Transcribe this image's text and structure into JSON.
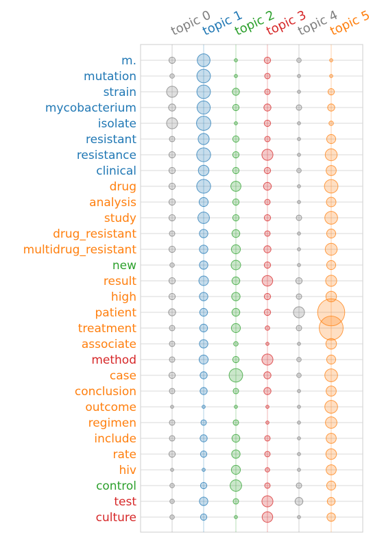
{
  "chart_data": {
    "type": "scatter",
    "title": "",
    "topics": [
      {
        "label": "topic 0",
        "color": "#7f7f7f"
      },
      {
        "label": "topic 1",
        "color": "#1f77b4"
      },
      {
        "label": "topic 2",
        "color": "#2ca02c"
      },
      {
        "label": "topic 3",
        "color": "#d62728"
      },
      {
        "label": "topic 4",
        "color": "#7f7f7f"
      },
      {
        "label": "topic 5",
        "color": "#ff7f0e"
      }
    ],
    "terms": [
      {
        "label": "m.",
        "topic": 1,
        "weights": [
          2,
          8,
          0.5,
          2,
          1,
          0.5
        ]
      },
      {
        "label": "mutation",
        "topic": 1,
        "weights": [
          1,
          9,
          0.5,
          1.5,
          0.5,
          0.5
        ]
      },
      {
        "label": "strain",
        "topic": 1,
        "weights": [
          6,
          9,
          2.5,
          1.5,
          0.5,
          2
        ]
      },
      {
        "label": "mycobacterium",
        "topic": 1,
        "weights": [
          2.5,
          8.5,
          2,
          2.5,
          1.5,
          2.5
        ]
      },
      {
        "label": "isolate",
        "topic": 1,
        "weights": [
          6,
          10,
          0.5,
          2,
          0.5,
          1
        ]
      },
      {
        "label": "resistant",
        "topic": 1,
        "weights": [
          1.5,
          6,
          2,
          1.5,
          0.5,
          4
        ]
      },
      {
        "label": "resistance",
        "topic": 1,
        "weights": [
          2,
          9.5,
          2,
          6,
          0.5,
          7
        ]
      },
      {
        "label": "clinical",
        "topic": 1,
        "weights": [
          2,
          5.5,
          2,
          2,
          1,
          5
        ]
      },
      {
        "label": "drug",
        "topic": 5,
        "weights": [
          2,
          9.5,
          5,
          3,
          0.5,
          9
        ]
      },
      {
        "label": "analysis",
        "topic": 5,
        "weights": [
          2,
          4,
          2,
          1.5,
          0.5,
          4.5
        ]
      },
      {
        "label": "study",
        "topic": 5,
        "weights": [
          2,
          6.5,
          2,
          2,
          1.5,
          8
        ]
      },
      {
        "label": "drug_resistant",
        "topic": 5,
        "weights": [
          1.5,
          3.5,
          3,
          1.5,
          0.5,
          4
        ]
      },
      {
        "label": "multidrug_resistant",
        "topic": 5,
        "weights": [
          2,
          3.5,
          4,
          2.5,
          0.5,
          7
        ]
      },
      {
        "label": "new",
        "topic": 2,
        "weights": [
          1,
          3.5,
          4.5,
          2,
          0.5,
          4
        ]
      },
      {
        "label": "result",
        "topic": 5,
        "weights": [
          2,
          4.5,
          3,
          5.5,
          2,
          6
        ]
      },
      {
        "label": "high",
        "topic": 5,
        "weights": [
          2,
          3.5,
          3.5,
          2,
          1.5,
          5.5
        ]
      },
      {
        "label": "patient",
        "topic": 5,
        "weights": [
          2.5,
          3,
          3,
          2,
          6,
          36
        ]
      },
      {
        "label": "treatment",
        "topic": 5,
        "weights": [
          1.5,
          3,
          4,
          1,
          1.5,
          28
        ]
      },
      {
        "label": "associate",
        "topic": 5,
        "weights": [
          1.5,
          3.5,
          1,
          0.5,
          0.5,
          5.5
        ]
      },
      {
        "label": "method",
        "topic": 3,
        "weights": [
          1.5,
          4,
          2,
          6,
          1,
          4
        ]
      },
      {
        "label": "case",
        "topic": 5,
        "weights": [
          2,
          2.5,
          9,
          2.5,
          1,
          8
        ]
      },
      {
        "label": "conclusion",
        "topic": 5,
        "weights": [
          1.5,
          2.5,
          1.5,
          2.5,
          0.5,
          5
        ]
      },
      {
        "label": "outcome",
        "topic": 5,
        "weights": [
          0.5,
          0.5,
          0.5,
          0.5,
          0.5,
          8
        ]
      },
      {
        "label": "regimen",
        "topic": 5,
        "weights": [
          1.5,
          1.5,
          1.5,
          0.5,
          0.5,
          6.5
        ]
      },
      {
        "label": "include",
        "topic": 5,
        "weights": [
          1.5,
          2.5,
          3,
          1.5,
          0.5,
          5
        ]
      },
      {
        "label": "rate",
        "topic": 5,
        "weights": [
          2,
          2,
          3.5,
          1.5,
          0.5,
          5.5
        ]
      },
      {
        "label": "hiv",
        "topic": 5,
        "weights": [
          0.5,
          0.5,
          4,
          1,
          0.5,
          5
        ]
      },
      {
        "label": "control",
        "topic": 2,
        "weights": [
          1,
          2,
          6.5,
          1.5,
          1.5,
          4
        ]
      },
      {
        "label": "test",
        "topic": 3,
        "weights": [
          1,
          3.5,
          1.5,
          6,
          3,
          3
        ]
      },
      {
        "label": "culture",
        "topic": 3,
        "weights": [
          1,
          2,
          0.5,
          5.5,
          0.5,
          3.5
        ]
      }
    ],
    "grid": true,
    "legend": "none"
  }
}
